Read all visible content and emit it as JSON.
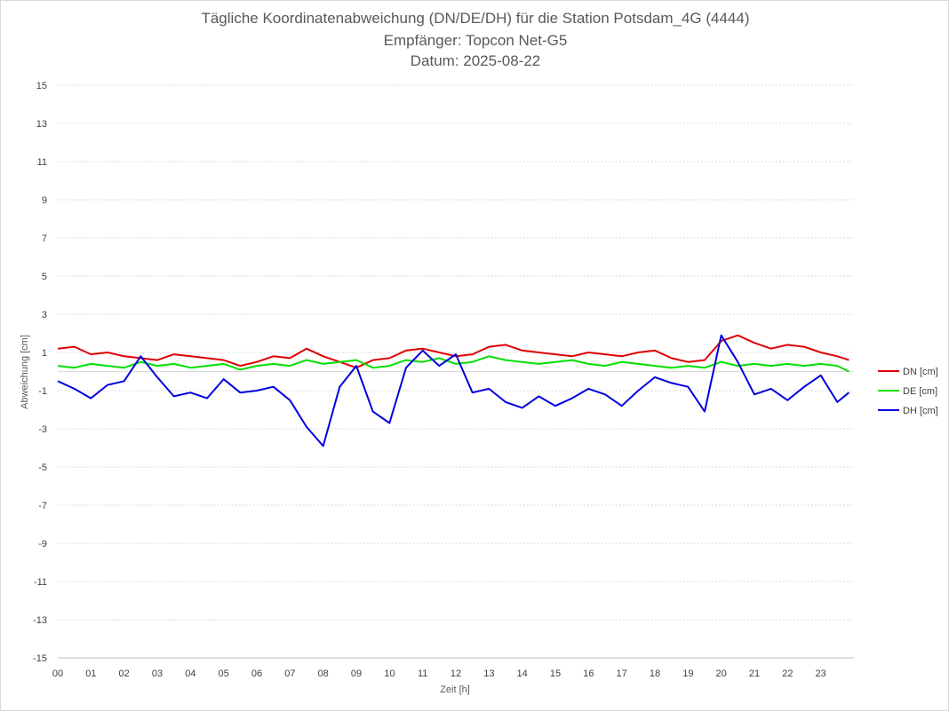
{
  "chart_data": {
    "type": "line",
    "title": "Tägliche Koordinatenabweichung (DN/DE/DH) für die Station Potsdam_4G (4444)",
    "subtitle_1": "Empfänger: Topcon Net-G5",
    "subtitle_2": "Datum: 2025-08-22",
    "xlabel": "Zeit [h]",
    "ylabel": "Abweichung [cm]",
    "xlim": [
      0,
      24
    ],
    "ylim": [
      -15,
      15
    ],
    "grid": true,
    "legend_position": "right",
    "x_tick_labels": [
      "00",
      "01",
      "02",
      "03",
      "04",
      "05",
      "06",
      "07",
      "08",
      "09",
      "10",
      "11",
      "12",
      "13",
      "14",
      "15",
      "16",
      "17",
      "18",
      "19",
      "20",
      "21",
      "22",
      "23"
    ],
    "y_tick_labels": [
      "15",
      "13",
      "11",
      "9",
      "7",
      "5",
      "3",
      "1",
      "-1",
      "-3",
      "-5",
      "-7",
      "-9",
      "-11",
      "-13",
      "-15"
    ],
    "y_tick_values": [
      15,
      13,
      11,
      9,
      7,
      5,
      3,
      1,
      -1,
      -3,
      -5,
      -7,
      -9,
      -11,
      -13,
      -15
    ],
    "series": [
      {
        "name": "DN [cm]",
        "color": "#e00000",
        "x": [
          0,
          0.5,
          1,
          1.5,
          2,
          2.5,
          3,
          3.5,
          4,
          4.5,
          5,
          5.5,
          6,
          6.5,
          7,
          7.5,
          8,
          8.5,
          9,
          9.5,
          10,
          10.5,
          11,
          11.5,
          12,
          12.5,
          13,
          13.5,
          14,
          14.5,
          15,
          15.5,
          16,
          16.5,
          17,
          17.5,
          18,
          18.5,
          19,
          19.5,
          20,
          20.5,
          21,
          21.5,
          22,
          22.5,
          23,
          23.5,
          23.85
        ],
        "values": [
          1.2,
          1.3,
          0.9,
          1.0,
          0.8,
          0.7,
          0.6,
          0.9,
          0.8,
          0.7,
          0.6,
          0.3,
          0.5,
          0.8,
          0.7,
          1.2,
          0.8,
          0.5,
          0.2,
          0.6,
          0.7,
          1.1,
          1.2,
          1.0,
          0.8,
          0.9,
          1.3,
          1.4,
          1.1,
          1.0,
          0.9,
          0.8,
          1.0,
          0.9,
          0.8,
          1.0,
          1.1,
          0.7,
          0.5,
          0.6,
          1.6,
          1.9,
          1.5,
          1.2,
          1.4,
          1.3,
          1.0,
          0.8,
          0.6
        ]
      },
      {
        "name": "DE [cm]",
        "color": "#00e000",
        "x": [
          0,
          0.5,
          1,
          1.5,
          2,
          2.5,
          3,
          3.5,
          4,
          4.5,
          5,
          5.5,
          6,
          6.5,
          7,
          7.5,
          8,
          8.5,
          9,
          9.5,
          10,
          10.5,
          11,
          11.5,
          12,
          12.5,
          13,
          13.5,
          14,
          14.5,
          15,
          15.5,
          16,
          16.5,
          17,
          17.5,
          18,
          18.5,
          19,
          19.5,
          20,
          20.5,
          21,
          21.5,
          22,
          22.5,
          23,
          23.5,
          23.85
        ],
        "values": [
          0.3,
          0.2,
          0.4,
          0.3,
          0.2,
          0.5,
          0.3,
          0.4,
          0.2,
          0.3,
          0.4,
          0.1,
          0.3,
          0.4,
          0.3,
          0.6,
          0.4,
          0.5,
          0.6,
          0.2,
          0.3,
          0.6,
          0.5,
          0.7,
          0.4,
          0.5,
          0.8,
          0.6,
          0.5,
          0.4,
          0.5,
          0.6,
          0.4,
          0.3,
          0.5,
          0.4,
          0.3,
          0.2,
          0.3,
          0.2,
          0.5,
          0.3,
          0.4,
          0.3,
          0.4,
          0.3,
          0.4,
          0.3,
          0.0
        ]
      },
      {
        "name": "DH [cm]",
        "color": "#0000e0",
        "x": [
          0,
          0.5,
          1,
          1.5,
          2,
          2.5,
          3,
          3.5,
          4,
          4.5,
          5,
          5.5,
          6,
          6.5,
          7,
          7.5,
          8,
          8.5,
          9,
          9.5,
          10,
          10.5,
          11,
          11.5,
          12,
          12.5,
          13,
          13.5,
          14,
          14.5,
          15,
          15.5,
          16,
          16.5,
          17,
          17.5,
          18,
          18.5,
          19,
          19.5,
          20,
          20.5,
          21,
          21.5,
          22,
          22.5,
          23,
          23.5,
          23.85
        ],
        "values": [
          -0.5,
          -0.9,
          -1.4,
          -0.7,
          -0.5,
          0.8,
          -0.3,
          -1.3,
          -1.1,
          -1.4,
          -0.4,
          -1.1,
          -1.0,
          -0.8,
          -1.5,
          -2.9,
          -3.9,
          -0.8,
          0.3,
          -2.1,
          -2.7,
          0.2,
          1.1,
          0.3,
          0.9,
          -1.1,
          -0.9,
          -1.6,
          -1.9,
          -1.3,
          -1.8,
          -1.4,
          -0.9,
          -1.2,
          -1.8,
          -1.0,
          -0.3,
          -0.6,
          -0.8,
          -2.1,
          1.9,
          0.5,
          -1.2,
          -0.9,
          -1.5,
          -0.8,
          -0.2,
          -1.6,
          -1.1
        ]
      }
    ]
  }
}
